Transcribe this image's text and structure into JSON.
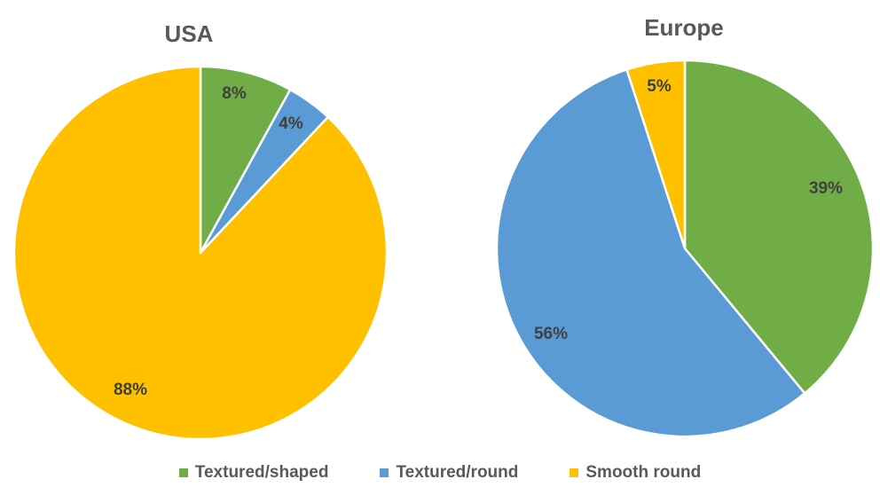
{
  "chart_data": [
    {
      "type": "pie",
      "title": "USA",
      "categories": [
        "Textured/shaped",
        "Textured/round",
        "Smooth round"
      ],
      "values": [
        8,
        4,
        88
      ],
      "labels": [
        "8%",
        "4%",
        "88%"
      ],
      "colors": [
        "#70ad47",
        "#5b9bd5",
        "#ffc000"
      ],
      "start_angle_deg": 0,
      "direction": "clockwise"
    },
    {
      "type": "pie",
      "title": "Europe",
      "categories": [
        "Textured/shaped",
        "Textured/round",
        "Smooth round"
      ],
      "values": [
        39,
        56,
        5
      ],
      "labels": [
        "39%",
        "56%",
        "5%"
      ],
      "colors": [
        "#70ad47",
        "#5b9bd5",
        "#ffc000"
      ],
      "start_angle_deg": 0,
      "direction": "clockwise"
    }
  ],
  "legend": {
    "placement": "bottom",
    "items": [
      {
        "label": "Textured/shaped",
        "color": "#70ad47"
      },
      {
        "label": "Textured/round",
        "color": "#5b9bd5"
      },
      {
        "label": "Smooth round",
        "color": "#ffc000"
      }
    ]
  }
}
